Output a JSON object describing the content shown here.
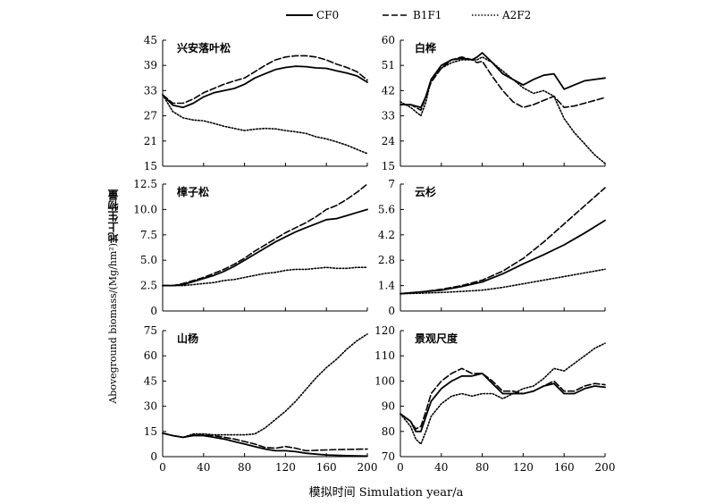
{
  "legend": [
    {
      "label": "CF0",
      "style": "solid"
    },
    {
      "label": "B1F1",
      "style": "dashed"
    },
    {
      "label": "A2F2",
      "style": "dotted"
    }
  ],
  "ylabel_cn": "地上生物量",
  "ylabel_en": "Aboveground biomass/(Mg/hm²)",
  "xlabel": "模拟时间 Simulation year/a",
  "chart_data": [
    {
      "type": "line",
      "title": "兴安落叶松",
      "xlim": [
        0,
        200
      ],
      "ylim": [
        15,
        45
      ],
      "xticks": [
        "0",
        "40",
        "80",
        "120",
        "160",
        "200"
      ],
      "yticks": [
        "15",
        "21",
        "27",
        "33",
        "39",
        "45"
      ],
      "show_xtick_labels": false,
      "series": [
        {
          "name": "CF0",
          "x": [
            0,
            10,
            20,
            30,
            40,
            50,
            60,
            70,
            80,
            90,
            100,
            110,
            120,
            130,
            140,
            150,
            160,
            170,
            180,
            190,
            200
          ],
          "y": [
            32,
            29.5,
            29,
            30,
            31.5,
            32.5,
            33,
            33.5,
            34.5,
            36,
            37,
            38,
            38.5,
            38.8,
            38.7,
            38.4,
            38.3,
            37.7,
            37.2,
            36.5,
            35
          ]
        },
        {
          "name": "B1F1",
          "x": [
            0,
            10,
            20,
            30,
            40,
            50,
            60,
            70,
            80,
            90,
            100,
            110,
            120,
            130,
            140,
            150,
            160,
            170,
            180,
            190,
            200
          ],
          "y": [
            32,
            30,
            30,
            31,
            32.5,
            33.5,
            34.5,
            35.3,
            36,
            37.5,
            39,
            40.3,
            41,
            41.3,
            41.3,
            41,
            40.3,
            39.3,
            38.5,
            37.5,
            35.5
          ]
        },
        {
          "name": "A2F2",
          "x": [
            0,
            10,
            20,
            30,
            40,
            50,
            60,
            70,
            80,
            90,
            100,
            110,
            120,
            130,
            140,
            150,
            160,
            170,
            180,
            190,
            200
          ],
          "y": [
            32,
            28,
            26.5,
            26,
            25.8,
            25.2,
            24.5,
            24,
            23.5,
            23.8,
            24,
            23.9,
            23.5,
            23.2,
            22.8,
            22,
            21.5,
            20.8,
            20,
            19,
            18
          ]
        }
      ]
    },
    {
      "type": "line",
      "title": "白桦",
      "xlim": [
        0,
        200
      ],
      "ylim": [
        15,
        60
      ],
      "xticks": [
        "0",
        "40",
        "80",
        "120",
        "160",
        "200"
      ],
      "yticks": [
        "15",
        "24",
        "33",
        "42",
        "51",
        "60"
      ],
      "show_xtick_labels": false,
      "series": [
        {
          "name": "CF0",
          "x": [
            0,
            10,
            20,
            25,
            30,
            40,
            50,
            60,
            70,
            75,
            80,
            90,
            100,
            110,
            120,
            130,
            140,
            150,
            160,
            170,
            180,
            190,
            200
          ],
          "y": [
            37,
            37,
            36,
            40,
            46,
            51,
            53,
            53.5,
            53,
            54,
            55.5,
            52,
            48,
            46,
            44,
            46,
            47.5,
            48,
            42.5,
            44,
            45.5,
            46,
            46.5
          ]
        },
        {
          "name": "B1F1",
          "x": [
            0,
            10,
            20,
            25,
            30,
            40,
            50,
            60,
            70,
            75,
            80,
            90,
            100,
            110,
            120,
            130,
            140,
            150,
            160,
            170,
            180,
            190,
            200
          ],
          "y": [
            37,
            37,
            35,
            40,
            45,
            50,
            53,
            54,
            53,
            52,
            52.5,
            47,
            42,
            38,
            36,
            37,
            38.5,
            40,
            36,
            36.5,
            37.5,
            38.5,
            39.5
          ]
        },
        {
          "name": "A2F2",
          "x": [
            0,
            10,
            20,
            25,
            30,
            40,
            50,
            60,
            70,
            75,
            80,
            90,
            100,
            110,
            120,
            130,
            140,
            150,
            160,
            170,
            180,
            190,
            200
          ],
          "y": [
            38,
            36,
            33,
            38,
            46,
            50,
            52,
            53,
            53,
            53,
            54,
            52,
            49,
            46,
            43,
            41,
            42,
            40,
            32,
            27,
            23,
            19,
            16
          ]
        }
      ]
    },
    {
      "type": "line",
      "title": "樟子松",
      "xlim": [
        0,
        200
      ],
      "ylim": [
        0,
        12.5
      ],
      "xticks": [
        "0",
        "40",
        "80",
        "120",
        "160",
        "200"
      ],
      "yticks": [
        "0",
        "2.5",
        "5.0",
        "7.5",
        "10.0",
        "12.5"
      ],
      "show_xtick_labels": false,
      "series": [
        {
          "name": "CF0",
          "x": [
            0,
            10,
            20,
            30,
            40,
            50,
            60,
            70,
            80,
            90,
            100,
            110,
            120,
            130,
            140,
            150,
            160,
            170,
            180,
            190,
            200
          ],
          "y": [
            2.5,
            2.5,
            2.6,
            2.9,
            3.2,
            3.5,
            3.9,
            4.4,
            5,
            5.6,
            6.2,
            6.8,
            7.3,
            7.8,
            8.2,
            8.6,
            9,
            9.1,
            9.4,
            9.7,
            10
          ]
        },
        {
          "name": "B1F1",
          "x": [
            0,
            10,
            20,
            30,
            40,
            50,
            60,
            70,
            80,
            90,
            100,
            110,
            120,
            130,
            140,
            150,
            160,
            170,
            180,
            190,
            200
          ],
          "y": [
            2.5,
            2.5,
            2.7,
            3,
            3.3,
            3.7,
            4.1,
            4.6,
            5.2,
            5.9,
            6.5,
            7.1,
            7.7,
            8.2,
            8.7,
            9.3,
            10,
            10.4,
            11,
            11.7,
            12.5
          ]
        },
        {
          "name": "A2F2",
          "x": [
            0,
            10,
            20,
            30,
            40,
            50,
            60,
            70,
            80,
            90,
            100,
            110,
            120,
            130,
            140,
            150,
            160,
            170,
            180,
            190,
            200
          ],
          "y": [
            2.5,
            2.5,
            2.5,
            2.6,
            2.7,
            2.8,
            3,
            3.1,
            3.3,
            3.5,
            3.7,
            3.8,
            4,
            4.1,
            4.1,
            4.2,
            4.3,
            4.2,
            4.2,
            4.3,
            4.3
          ]
        }
      ]
    },
    {
      "type": "line",
      "title": "云杉",
      "xlim": [
        0,
        200
      ],
      "ylim": [
        0,
        7
      ],
      "xticks": [
        "0",
        "40",
        "80",
        "120",
        "160",
        "200"
      ],
      "yticks": [
        "0",
        "1.4",
        "2.8",
        "4.2",
        "5.6",
        "7"
      ],
      "show_xtick_labels": false,
      "series": [
        {
          "name": "CF0",
          "x": [
            0,
            20,
            40,
            60,
            80,
            100,
            120,
            140,
            160,
            180,
            200
          ],
          "y": [
            0.95,
            1.05,
            1.15,
            1.35,
            1.6,
            2.05,
            2.6,
            3.1,
            3.65,
            4.3,
            5
          ]
        },
        {
          "name": "B1F1",
          "x": [
            0,
            20,
            40,
            60,
            80,
            100,
            120,
            140,
            160,
            180,
            200
          ],
          "y": [
            0.95,
            1.05,
            1.2,
            1.4,
            1.7,
            2.2,
            2.9,
            3.8,
            4.8,
            5.8,
            6.8
          ]
        },
        {
          "name": "A2F2",
          "x": [
            0,
            20,
            40,
            60,
            80,
            100,
            120,
            140,
            160,
            180,
            200
          ],
          "y": [
            0.95,
            0.98,
            1.02,
            1.08,
            1.15,
            1.3,
            1.5,
            1.7,
            1.9,
            2.1,
            2.3
          ]
        }
      ]
    },
    {
      "type": "line",
      "title": "山杨",
      "xlim": [
        0,
        200
      ],
      "ylim": [
        0,
        75
      ],
      "xticks": [
        "0",
        "40",
        "80",
        "120",
        "160",
        "200"
      ],
      "yticks": [
        "0",
        "15",
        "30",
        "45",
        "60",
        "75"
      ],
      "show_xtick_labels": true,
      "series": [
        {
          "name": "CF0",
          "x": [
            0,
            10,
            20,
            30,
            40,
            50,
            60,
            70,
            80,
            90,
            100,
            110,
            120,
            130,
            140,
            150,
            160,
            170,
            180,
            190,
            200
          ],
          "y": [
            14,
            12.5,
            11.5,
            12.5,
            12.5,
            11.5,
            10.5,
            9,
            7.5,
            6,
            4.5,
            3.5,
            3.5,
            3,
            2,
            1.5,
            1,
            0.8,
            0.6,
            0.4,
            0.3
          ]
        },
        {
          "name": "B1F1",
          "x": [
            0,
            10,
            20,
            30,
            40,
            50,
            60,
            70,
            80,
            90,
            100,
            110,
            120,
            130,
            140,
            150,
            160,
            170,
            180,
            190,
            200
          ],
          "y": [
            14,
            12.5,
            11.5,
            13,
            13,
            12.5,
            11.5,
            10.5,
            9,
            7.5,
            5.5,
            5,
            6,
            5,
            3.5,
            3.8,
            4,
            4.2,
            4.3,
            4.4,
            4.5
          ]
        },
        {
          "name": "A2F2",
          "x": [
            0,
            10,
            20,
            30,
            40,
            50,
            60,
            70,
            80,
            90,
            100,
            110,
            120,
            130,
            140,
            150,
            160,
            170,
            180,
            190,
            200
          ],
          "y": [
            14,
            12.5,
            11.5,
            13.5,
            13.5,
            13,
            13,
            13,
            13,
            13.5,
            17,
            22,
            27,
            33,
            40,
            47,
            53,
            58,
            64,
            69,
            73
          ]
        }
      ]
    },
    {
      "type": "line",
      "title": "景观尺度",
      "xlim": [
        0,
        200
      ],
      "ylim": [
        70,
        120
      ],
      "xticks": [
        "0",
        "40",
        "80",
        "120",
        "160",
        "200"
      ],
      "yticks": [
        "70",
        "80",
        "90",
        "100",
        "110",
        "120"
      ],
      "show_xtick_labels": true,
      "series": [
        {
          "name": "CF0",
          "x": [
            0,
            10,
            15,
            20,
            25,
            30,
            40,
            50,
            60,
            70,
            80,
            90,
            100,
            110,
            120,
            130,
            140,
            150,
            160,
            170,
            180,
            190,
            200
          ],
          "y": [
            87,
            84,
            80,
            80,
            86,
            92,
            97,
            100,
            102,
            102,
            103,
            99,
            95,
            95,
            95,
            96,
            98,
            99,
            95,
            95,
            97,
            98,
            97.5
          ]
        },
        {
          "name": "B1F1",
          "x": [
            0,
            10,
            15,
            20,
            25,
            30,
            40,
            50,
            60,
            70,
            80,
            90,
            100,
            110,
            120,
            130,
            140,
            150,
            160,
            170,
            180,
            190,
            200
          ],
          "y": [
            87,
            84,
            81,
            82,
            88,
            95,
            100,
            103,
            105,
            103,
            103,
            100,
            96,
            96,
            95,
            96,
            98,
            100,
            96,
            96,
            98,
            99,
            98.5
          ]
        },
        {
          "name": "A2F2",
          "x": [
            0,
            10,
            15,
            20,
            25,
            30,
            40,
            50,
            60,
            70,
            80,
            90,
            100,
            110,
            120,
            130,
            140,
            150,
            160,
            170,
            180,
            190,
            200
          ],
          "y": [
            87,
            82,
            77,
            75,
            80,
            86,
            91,
            94,
            95,
            94,
            95,
            95,
            93,
            95,
            97,
            98,
            101,
            105,
            104,
            107,
            110,
            113,
            115
          ]
        }
      ]
    }
  ]
}
